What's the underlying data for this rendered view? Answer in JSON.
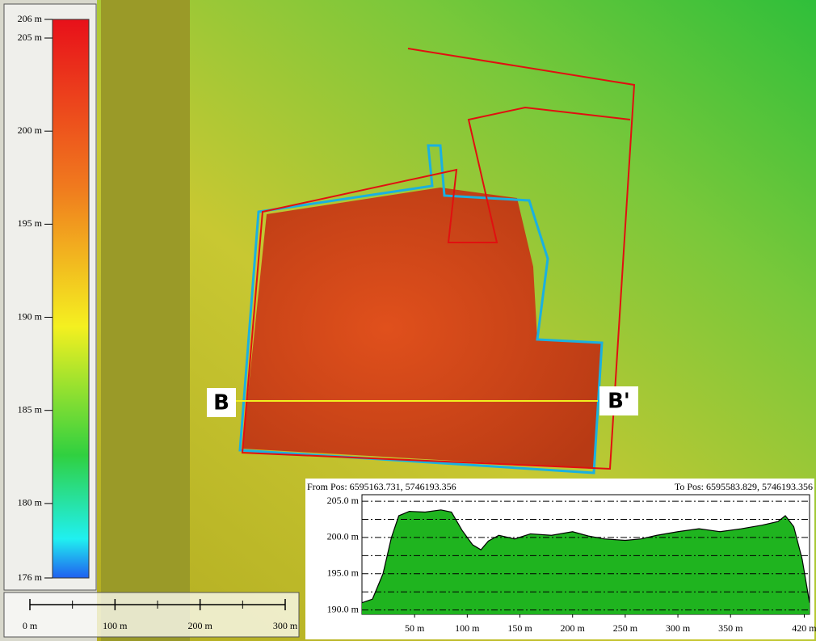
{
  "map": {
    "colorbar": {
      "ylim": [
        176,
        206
      ],
      "ticks": [
        {
          "value": 206,
          "label": "206 m"
        },
        {
          "value": 205,
          "label": "205 m"
        },
        {
          "value": 200,
          "label": "200 m"
        },
        {
          "value": 195,
          "label": "195 m"
        },
        {
          "value": 190,
          "label": "190 m"
        },
        {
          "value": 185,
          "label": "185 m"
        },
        {
          "value": 180,
          "label": "180 m"
        },
        {
          "value": 176,
          "label": "176 m"
        }
      ]
    },
    "scale_bar": {
      "xlim": [
        0,
        300
      ],
      "ticks": [
        {
          "value": 0,
          "label": "0 m"
        },
        {
          "value": 100,
          "label": "100 m"
        },
        {
          "value": 200,
          "label": "200 m"
        },
        {
          "value": 300,
          "label": "300 m"
        }
      ],
      "minor_ticks": [
        50,
        150,
        250
      ]
    },
    "section_start": "B",
    "section_end": "B'"
  },
  "chart_data": {
    "type": "area",
    "from_label": "From Pos: 6595163.731, 5746193.356",
    "to_label": "To Pos: 6595583.829, 5746193.356",
    "color": "#1fb41f",
    "x": [
      0,
      10,
      20,
      28,
      35,
      45,
      60,
      75,
      85,
      95,
      105,
      113,
      120,
      130,
      145,
      160,
      180,
      200,
      215,
      230,
      250,
      265,
      280,
      300,
      320,
      340,
      360,
      380,
      395,
      402,
      410,
      418,
      425
    ],
    "values": [
      191,
      191.5,
      195,
      200,
      203,
      203.6,
      203.5,
      203.8,
      203.5,
      201,
      199,
      198.3,
      199.5,
      200.3,
      199.8,
      200.5,
      200.3,
      200.8,
      200.2,
      199.8,
      199.6,
      199.8,
      200.3,
      200.8,
      201.2,
      200.8,
      201.2,
      201.7,
      202.2,
      203,
      201.5,
      197,
      191
    ],
    "xlim": [
      0,
      425
    ],
    "ylim": [
      189.4,
      205.9
    ],
    "xticks": [
      {
        "value": 50,
        "label": "50 m"
      },
      {
        "value": 100,
        "label": "100 m"
      },
      {
        "value": 150,
        "label": "150 m"
      },
      {
        "value": 200,
        "label": "200 m"
      },
      {
        "value": 250,
        "label": "250 m"
      },
      {
        "value": 300,
        "label": "300 m"
      },
      {
        "value": 350,
        "label": "350 m"
      },
      {
        "value": 420,
        "label": "420 m"
      }
    ],
    "yticks": [
      {
        "value": 190,
        "label": "190.0 m"
      },
      {
        "value": 195,
        "label": "195.0 m"
      },
      {
        "value": 200,
        "label": "200.0 m"
      },
      {
        "value": 205,
        "label": "205.0 m"
      }
    ],
    "yminor": [
      192.5,
      197.5,
      202.5
    ]
  }
}
